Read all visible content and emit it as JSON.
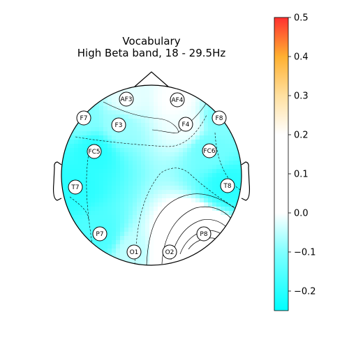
{
  "chart_data": {
    "type": "heatmap",
    "subtype": "eeg-topomap",
    "title": "Vocabulary",
    "subtitle": "High Beta band, 18 - 29.5Hz",
    "colorbar": {
      "vmin": -0.25,
      "vmax": 0.5,
      "ticks": [
        -0.2,
        -0.1,
        0.0,
        0.1,
        0.2,
        0.3,
        0.4,
        0.5
      ],
      "tick_labels": [
        "−0.2",
        "−0.1",
        "0.0",
        "0.1",
        "0.2",
        "0.3",
        "0.4",
        "0.5"
      ],
      "stops": [
        {
          "value": -0.25,
          "color": "#00ffff"
        },
        {
          "value": -0.1,
          "color": "#80ffff"
        },
        {
          "value": 0.0,
          "color": "#ffffff"
        },
        {
          "value": 0.2,
          "color": "#ffffff"
        },
        {
          "value": 0.3,
          "color": "#ffe0a0"
        },
        {
          "value": 0.4,
          "color": "#ffb030"
        },
        {
          "value": 0.5,
          "color": "#ff3030"
        }
      ]
    },
    "electrodes": [
      {
        "name": "AF3",
        "value": -0.02
      },
      {
        "name": "AF4",
        "value": 0.0
      },
      {
        "name": "F7",
        "value": -0.1
      },
      {
        "name": "F3",
        "value": -0.08
      },
      {
        "name": "F4",
        "value": -0.01
      },
      {
        "name": "F8",
        "value": -0.1
      },
      {
        "name": "FC5",
        "value": -0.2
      },
      {
        "name": "FC6",
        "value": -0.12
      },
      {
        "name": "T7",
        "value": -0.2
      },
      {
        "name": "T8",
        "value": -0.2
      },
      {
        "name": "P7",
        "value": -0.16
      },
      {
        "name": "P8",
        "value": 0.16
      },
      {
        "name": "O1",
        "value": -0.05
      },
      {
        "name": "O2",
        "value": 0.05
      }
    ]
  }
}
